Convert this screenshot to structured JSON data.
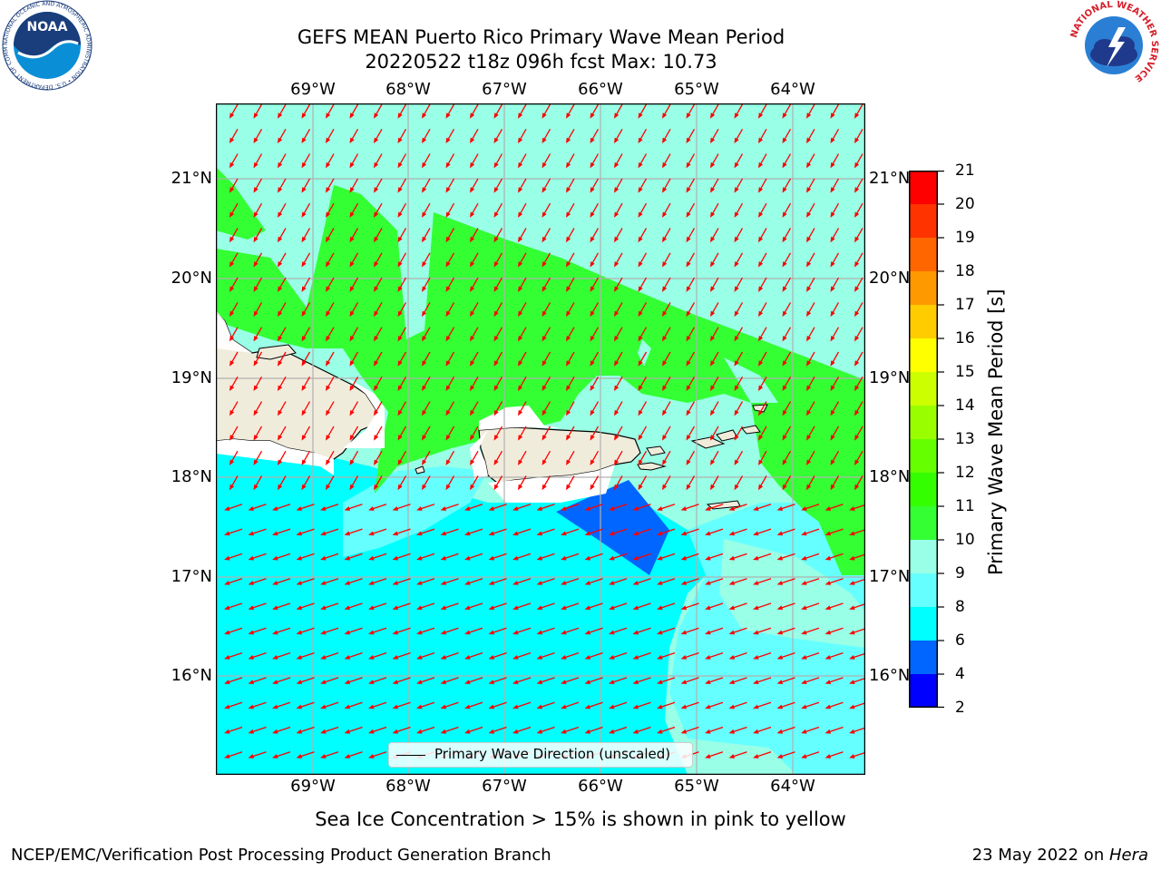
{
  "header": {
    "title_line1": "GEFS MEAN Puerto Rico Primary Wave Mean Period",
    "title_line2": "20220522 t18z 096h fcst   Max: 10.73"
  },
  "map": {
    "lon_ticks": [
      "69°W",
      "68°W",
      "67°W",
      "66°W",
      "65°W",
      "64°W"
    ],
    "lat_ticks": [
      "21°N",
      "20°N",
      "19°N",
      "18°N",
      "17°N",
      "16°N"
    ],
    "legend_label": "Primary Wave Direction (unscaled)",
    "colors": {
      "ocean_light": "#00ffff",
      "ocean_mid": "#66ffff",
      "ocean_pale": "#99ffe6",
      "green": "#33ff33",
      "blue": "#0066ff",
      "land": "#f0ecdc",
      "arrow": "#ff0000",
      "grid": "#b0b0b0"
    }
  },
  "colorbar": {
    "label": "Primary Wave Mean Period [s]",
    "ticks": [
      "21",
      "20",
      "19",
      "18",
      "17",
      "16",
      "15",
      "14",
      "13",
      "12",
      "11",
      "10",
      "9",
      "8",
      "6",
      "4",
      "2"
    ],
    "colors_top_to_bottom": [
      "#ff0000",
      "#ff3300",
      "#ff6600",
      "#ff9900",
      "#ffcc00",
      "#ffff00",
      "#ccff00",
      "#99ff00",
      "#66ff00",
      "#33ff00",
      "#33ff33",
      "#99ffe6",
      "#66ffff",
      "#00ffff",
      "#0066ff",
      "#0000ff"
    ]
  },
  "caption": "Sea Ice Concentration > 15% is shown in pink to yellow",
  "footer": {
    "left": "NCEP/EMC/Verification Post Processing Product Generation Branch",
    "right_prefix": "23 May 2022 on ",
    "right_host": "Hera"
  },
  "logos": {
    "noaa_text": "NOAA",
    "noaa_ring_text": "NATIONAL OCEANIC AND ATMOSPHERIC ADMINISTRATION • U.S. DEPARTMENT OF COMMERCE",
    "nws_ring_text": "NATIONAL WEATHER SERVICE"
  }
}
